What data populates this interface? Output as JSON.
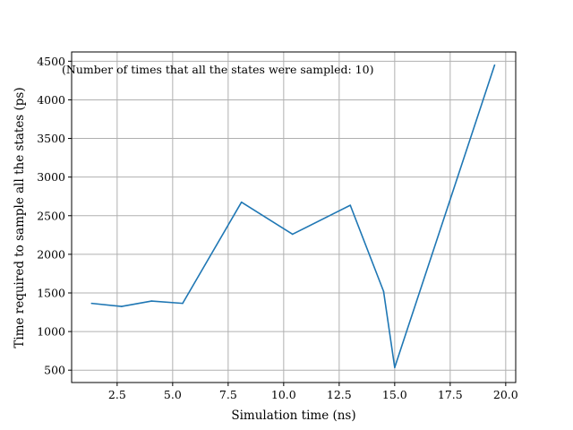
{
  "chart_data": {
    "type": "line",
    "title": "",
    "xlabel": "Simulation time (ns)",
    "ylabel": "Time required to sample all the states (ps)",
    "annotation": "(Number of times that all the states were sampled: 10)",
    "xlim": [
      0.45,
      20.45
    ],
    "ylim": [
      340,
      4620
    ],
    "xticks": [
      2.5,
      5.0,
      7.5,
      10.0,
      12.5,
      15.0,
      17.5,
      20.0
    ],
    "xtick_labels": [
      "2.5",
      "5.0",
      "7.5",
      "10.0",
      "12.5",
      "15.0",
      "17.5",
      "20.0"
    ],
    "yticks": [
      500,
      1000,
      1500,
      2000,
      2500,
      3000,
      3500,
      4000,
      4500
    ],
    "ytick_labels": [
      "500",
      "1000",
      "1500",
      "2000",
      "2500",
      "3000",
      "3500",
      "4000",
      "4500"
    ],
    "grid": true,
    "line_color": "#1f77b4",
    "series": [
      {
        "x": [
          1.35,
          2.7,
          4.05,
          5.45,
          8.1,
          10.4,
          13.0,
          14.5,
          15.0,
          19.5
        ],
        "y": [
          1365,
          1325,
          1395,
          1365,
          2675,
          2260,
          2635,
          1520,
          535,
          4450
        ]
      }
    ]
  }
}
